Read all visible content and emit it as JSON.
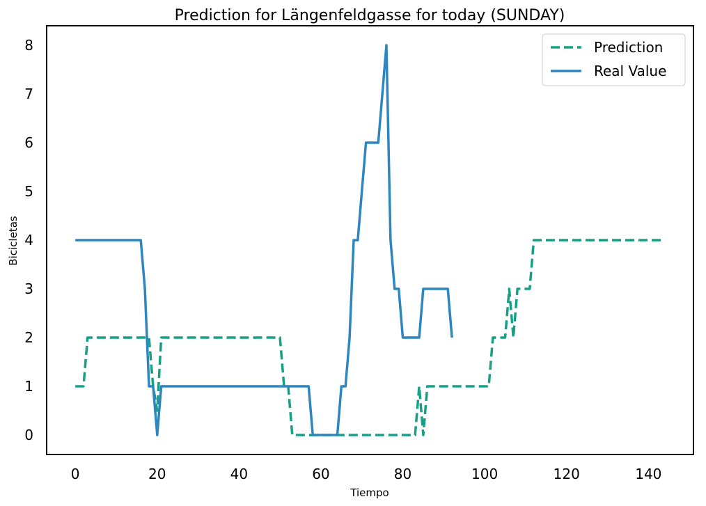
{
  "chart_data": {
    "type": "line",
    "title": "Prediction for Längenfeldgasse for today (SUNDAY)",
    "xlabel": "Tiempo",
    "ylabel": "Bicicletas",
    "xlim": [
      -7,
      151
    ],
    "ylim": [
      -0.4,
      8.4
    ],
    "xticks": [
      0,
      20,
      40,
      60,
      80,
      100,
      120,
      140
    ],
    "yticks": [
      0,
      1,
      2,
      3,
      4,
      5,
      6,
      7,
      8
    ],
    "grid": false,
    "legend_position": "top-right",
    "series": [
      {
        "name": "Prediction",
        "color": "#16a085",
        "style": "dashed",
        "x": [
          0,
          2,
          3,
          17,
          18,
          19,
          20,
          21,
          50,
          51,
          52,
          53,
          54,
          82,
          83,
          84,
          85,
          86,
          101,
          102,
          103,
          104,
          105,
          106,
          107,
          108,
          109,
          110,
          111,
          112,
          143
        ],
        "y": [
          1,
          1,
          2,
          2,
          2,
          1,
          0.5,
          2,
          2,
          1,
          1,
          0,
          0,
          0,
          0,
          1,
          0,
          1,
          1,
          2,
          2,
          2,
          2,
          3,
          2,
          3,
          3,
          3,
          3,
          4,
          4
        ]
      },
      {
        "name": "Real Value",
        "color": "#2e86c1",
        "style": "solid",
        "x": [
          0,
          16,
          17,
          18,
          19,
          20,
          21,
          57,
          58,
          64,
          65,
          66,
          67,
          68,
          69,
          70,
          71,
          74,
          76,
          77,
          78,
          79,
          80,
          84,
          85,
          91,
          92
        ],
        "y": [
          4,
          4,
          3,
          1,
          1,
          0,
          1,
          1,
          0,
          0,
          1,
          1,
          2,
          4,
          4,
          5,
          6,
          6,
          8,
          4,
          3,
          3,
          2,
          2,
          3,
          3,
          2
        ]
      }
    ]
  }
}
